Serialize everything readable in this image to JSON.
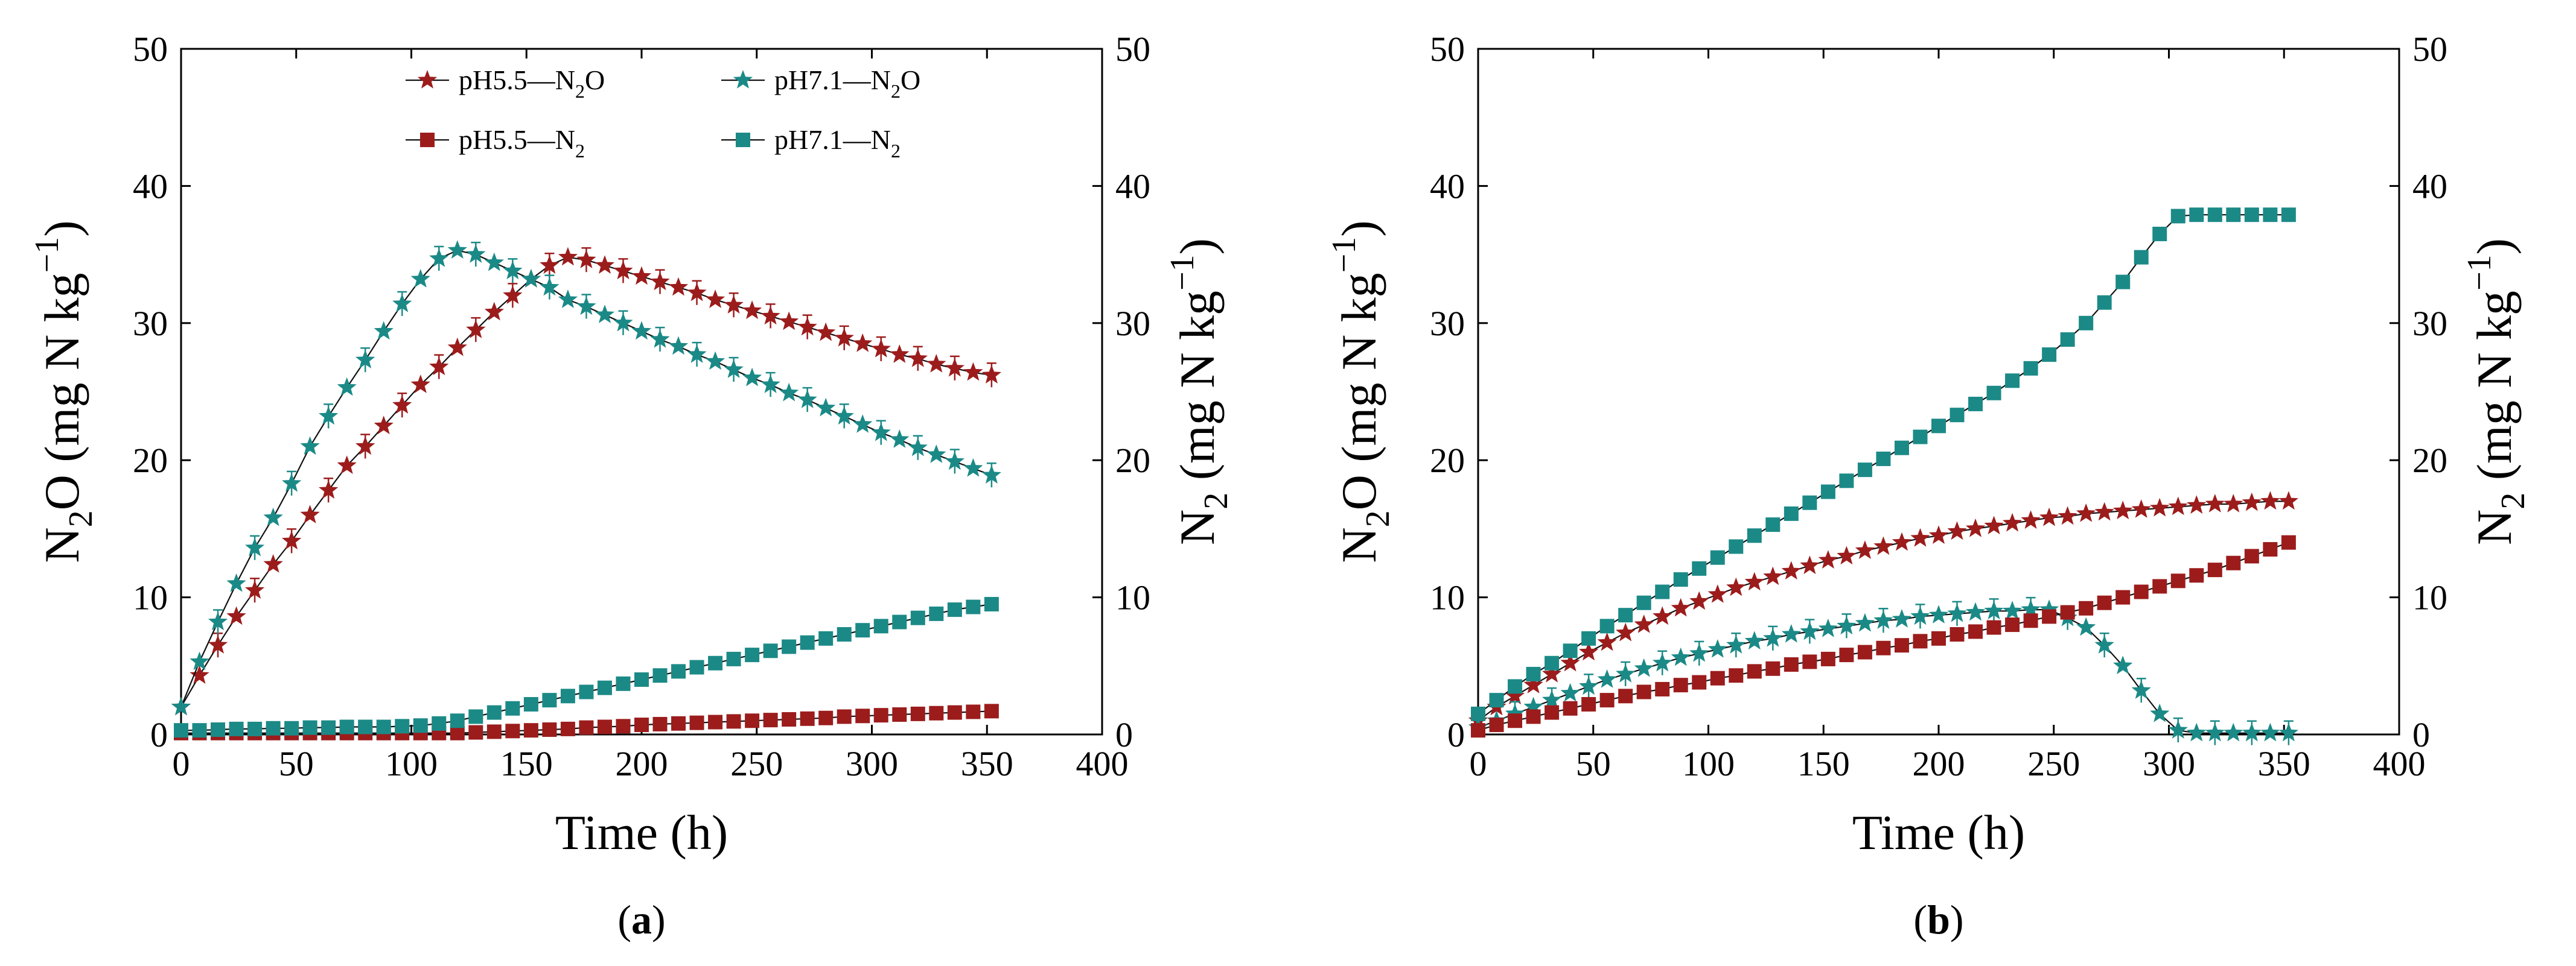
{
  "colors": {
    "red": "#9c1c1c",
    "teal": "#1b8a87",
    "axis": "#000000"
  },
  "axis_text": {
    "x_title": "Time (h)",
    "left_title": {
      "main": "N",
      "sub": "2",
      "rest": "O (mg N kg",
      "sup": "−1",
      "close": ")"
    },
    "right_title": {
      "main": "N",
      "sub": "2",
      "rest": " (mg N kg",
      "sup": "−1",
      "close": ")"
    }
  },
  "legend": [
    {
      "base": "pH5.5",
      "dash": "—",
      "species": "N",
      "sub": "2",
      "tail": "O",
      "color": "red",
      "marker": "star"
    },
    {
      "base": "pH7.1",
      "dash": "—",
      "species": "N",
      "sub": "2",
      "tail": "O",
      "color": "teal",
      "marker": "star"
    },
    {
      "base": "pH5.5",
      "dash": "—",
      "species": "N",
      "sub": "2",
      "tail": "",
      "color": "red",
      "marker": "square"
    },
    {
      "base": "pH7.1",
      "dash": "—",
      "species": "N",
      "sub": "2",
      "tail": "",
      "color": "teal",
      "marker": "square"
    }
  ],
  "chart_data": [
    {
      "panel": "(a)",
      "type": "line",
      "xlabel": "Time (h)",
      "ylabel": "N2O (mg N kg−1)",
      "y2label": "N2 (mg N kg−1)",
      "xlim": [
        0,
        400
      ],
      "ylim": [
        0,
        50
      ],
      "y2lim": [
        0,
        50
      ],
      "xticks": [
        0,
        50,
        100,
        150,
        200,
        250,
        300,
        350,
        400
      ],
      "yticks": [
        0,
        10,
        20,
        30,
        40,
        50
      ],
      "series": [
        {
          "name": "pH5.5—N2O",
          "color": "red",
          "marker": "star",
          "axis": "left",
          "error_bars": true,
          "x": [
            0,
            8,
            16,
            24,
            32,
            40,
            48,
            56,
            64,
            72,
            80,
            88,
            96,
            104,
            112,
            120,
            128,
            136,
            144,
            152,
            160,
            168,
            176,
            184,
            192,
            200,
            208,
            216,
            224,
            232,
            240,
            248,
            256,
            264,
            272,
            280,
            288,
            296,
            304,
            312,
            320,
            328,
            336,
            344,
            352
          ],
          "y": [
            2.0,
            4.3,
            6.5,
            8.6,
            10.5,
            12.4,
            14.1,
            16.0,
            17.8,
            19.6,
            21.0,
            22.5,
            24.0,
            25.5,
            26.8,
            28.2,
            29.5,
            30.8,
            32.0,
            33.2,
            34.2,
            34.8,
            34.6,
            34.2,
            33.8,
            33.4,
            33.0,
            32.6,
            32.2,
            31.7,
            31.3,
            30.9,
            30.5,
            30.1,
            29.7,
            29.3,
            28.9,
            28.5,
            28.1,
            27.7,
            27.4,
            27.0,
            26.7,
            26.4,
            26.2
          ]
        },
        {
          "name": "pH7.1—N2O",
          "color": "teal",
          "marker": "star",
          "axis": "left",
          "error_bars": true,
          "x": [
            0,
            8,
            16,
            24,
            32,
            40,
            48,
            56,
            64,
            72,
            80,
            88,
            96,
            104,
            112,
            120,
            128,
            136,
            144,
            152,
            160,
            168,
            176,
            184,
            192,
            200,
            208,
            216,
            224,
            232,
            240,
            248,
            256,
            264,
            272,
            280,
            288,
            296,
            304,
            312,
            320,
            328,
            336,
            344,
            352
          ],
          "y": [
            2.0,
            5.3,
            8.2,
            11.0,
            13.6,
            15.8,
            18.3,
            21.0,
            23.2,
            25.3,
            27.3,
            29.4,
            31.4,
            33.2,
            34.7,
            35.3,
            35.0,
            34.4,
            33.8,
            33.2,
            32.6,
            31.7,
            31.2,
            30.6,
            30.0,
            29.4,
            28.8,
            28.3,
            27.7,
            27.2,
            26.6,
            26.0,
            25.5,
            24.9,
            24.4,
            23.8,
            23.2,
            22.6,
            22.0,
            21.5,
            20.9,
            20.4,
            19.9,
            19.4,
            18.9
          ]
        },
        {
          "name": "pH5.5—N2",
          "color": "red",
          "marker": "square",
          "axis": "right",
          "error_bars": false,
          "x": [
            0,
            8,
            16,
            24,
            32,
            40,
            48,
            56,
            64,
            72,
            80,
            88,
            96,
            104,
            112,
            120,
            128,
            136,
            144,
            152,
            160,
            168,
            176,
            184,
            192,
            200,
            208,
            216,
            224,
            232,
            240,
            248,
            256,
            264,
            272,
            280,
            288,
            296,
            304,
            312,
            320,
            328,
            336,
            344,
            352
          ],
          "y": [
            0.1,
            0.1,
            0.1,
            0.1,
            0.1,
            0.1,
            0.1,
            0.1,
            0.1,
            0.1,
            0.1,
            0.1,
            0.1,
            0.1,
            0.1,
            0.1,
            0.15,
            0.2,
            0.25,
            0.3,
            0.35,
            0.4,
            0.5,
            0.55,
            0.6,
            0.7,
            0.75,
            0.8,
            0.85,
            0.9,
            0.95,
            1.0,
            1.05,
            1.1,
            1.15,
            1.2,
            1.3,
            1.35,
            1.4,
            1.45,
            1.5,
            1.55,
            1.6,
            1.65,
            1.7
          ]
        },
        {
          "name": "pH7.1—N2",
          "color": "teal",
          "marker": "square",
          "axis": "right",
          "error_bars": false,
          "x": [
            0,
            8,
            16,
            24,
            32,
            40,
            48,
            56,
            64,
            72,
            80,
            88,
            96,
            104,
            112,
            120,
            128,
            136,
            144,
            152,
            160,
            168,
            176,
            184,
            192,
            200,
            208,
            216,
            224,
            232,
            240,
            248,
            256,
            264,
            272,
            280,
            288,
            296,
            304,
            312,
            320,
            328,
            336,
            344,
            352
          ],
          "y": [
            0.3,
            0.3,
            0.35,
            0.4,
            0.4,
            0.45,
            0.45,
            0.5,
            0.5,
            0.55,
            0.55,
            0.55,
            0.6,
            0.65,
            0.8,
            1.0,
            1.3,
            1.6,
            1.9,
            2.2,
            2.5,
            2.8,
            3.1,
            3.4,
            3.7,
            4.0,
            4.3,
            4.6,
            4.9,
            5.2,
            5.5,
            5.8,
            6.1,
            6.4,
            6.7,
            7.0,
            7.3,
            7.6,
            7.9,
            8.2,
            8.5,
            8.8,
            9.1,
            9.3,
            9.5
          ]
        }
      ]
    },
    {
      "panel": "(b)",
      "type": "line",
      "xlabel": "Time (h)",
      "ylabel": "N2O (mg N kg−1)",
      "y2label": "N2 (mg N kg−1)",
      "xlim": [
        0,
        400
      ],
      "ylim": [
        0,
        50
      ],
      "y2lim": [
        0,
        50
      ],
      "xticks": [
        0,
        50,
        100,
        150,
        200,
        250,
        300,
        350,
        400
      ],
      "yticks": [
        0,
        10,
        20,
        30,
        40,
        50
      ],
      "series": [
        {
          "name": "pH5.5—N2O",
          "color": "red",
          "marker": "star",
          "axis": "left",
          "error_bars": false,
          "x": [
            0,
            8,
            16,
            24,
            32,
            40,
            48,
            56,
            64,
            72,
            80,
            88,
            96,
            104,
            112,
            120,
            128,
            136,
            144,
            152,
            160,
            168,
            176,
            184,
            192,
            200,
            208,
            216,
            224,
            232,
            240,
            248,
            256,
            264,
            272,
            280,
            288,
            296,
            304,
            312,
            320,
            328,
            336,
            344,
            352
          ],
          "y": [
            1.0,
            2.0,
            2.8,
            3.6,
            4.4,
            5.2,
            6.0,
            6.7,
            7.4,
            8.0,
            8.6,
            9.2,
            9.7,
            10.2,
            10.7,
            11.1,
            11.5,
            11.9,
            12.3,
            12.7,
            13.0,
            13.4,
            13.7,
            14.0,
            14.3,
            14.5,
            14.8,
            15.0,
            15.2,
            15.4,
            15.6,
            15.8,
            15.9,
            16.1,
            16.2,
            16.3,
            16.4,
            16.5,
            16.6,
            16.7,
            16.8,
            16.8,
            16.9,
            17.0,
            17.0
          ]
        },
        {
          "name": "pH7.1—N2O",
          "color": "teal",
          "marker": "star",
          "axis": "left",
          "error_bars": true,
          "x": [
            0,
            8,
            16,
            24,
            32,
            40,
            48,
            56,
            64,
            72,
            80,
            88,
            96,
            104,
            112,
            120,
            128,
            136,
            144,
            152,
            160,
            168,
            176,
            184,
            192,
            200,
            208,
            216,
            224,
            232,
            240,
            248,
            256,
            264,
            272,
            280,
            288,
            296,
            304,
            312,
            320,
            328,
            336,
            344,
            352
          ],
          "y": [
            0.5,
            1.0,
            1.5,
            2.0,
            2.5,
            3.0,
            3.5,
            4.0,
            4.4,
            4.8,
            5.2,
            5.6,
            5.9,
            6.2,
            6.5,
            6.8,
            7.0,
            7.3,
            7.5,
            7.7,
            7.9,
            8.1,
            8.3,
            8.4,
            8.6,
            8.7,
            8.8,
            8.9,
            9.0,
            9.0,
            9.1,
            9.1,
            8.5,
            7.8,
            6.5,
            5.0,
            3.2,
            1.5,
            0.3,
            0.1,
            0.1,
            0.1,
            0.1,
            0.1,
            0.1
          ]
        },
        {
          "name": "pH5.5—N2",
          "color": "red",
          "marker": "square",
          "axis": "right",
          "error_bars": false,
          "x": [
            0,
            8,
            16,
            24,
            32,
            40,
            48,
            56,
            64,
            72,
            80,
            88,
            96,
            104,
            112,
            120,
            128,
            136,
            144,
            152,
            160,
            168,
            176,
            184,
            192,
            200,
            208,
            216,
            224,
            232,
            240,
            248,
            256,
            264,
            272,
            280,
            288,
            296,
            304,
            312,
            320,
            328,
            336,
            344,
            352
          ],
          "y": [
            0.3,
            0.7,
            1.0,
            1.3,
            1.6,
            1.9,
            2.2,
            2.5,
            2.8,
            3.1,
            3.3,
            3.6,
            3.8,
            4.1,
            4.3,
            4.6,
            4.8,
            5.1,
            5.3,
            5.5,
            5.8,
            6.0,
            6.3,
            6.5,
            6.8,
            7.0,
            7.3,
            7.5,
            7.8,
            8.0,
            8.3,
            8.6,
            8.9,
            9.2,
            9.6,
            10.0,
            10.4,
            10.8,
            11.2,
            11.6,
            12.0,
            12.5,
            13.0,
            13.5,
            14.0
          ]
        },
        {
          "name": "pH7.1—N2",
          "color": "teal",
          "marker": "square",
          "axis": "right",
          "error_bars": false,
          "x": [
            0,
            8,
            16,
            24,
            32,
            40,
            48,
            56,
            64,
            72,
            80,
            88,
            96,
            104,
            112,
            120,
            128,
            136,
            144,
            152,
            160,
            168,
            176,
            184,
            192,
            200,
            208,
            216,
            224,
            232,
            240,
            248,
            256,
            264,
            272,
            280,
            288,
            296,
            304,
            312,
            320,
            328,
            336,
            344,
            352
          ],
          "y": [
            1.5,
            2.5,
            3.5,
            4.4,
            5.2,
            6.1,
            7.0,
            7.9,
            8.7,
            9.6,
            10.4,
            11.3,
            12.1,
            12.9,
            13.7,
            14.5,
            15.3,
            16.1,
            16.9,
            17.7,
            18.5,
            19.3,
            20.1,
            20.9,
            21.7,
            22.5,
            23.3,
            24.1,
            24.9,
            25.8,
            26.7,
            27.7,
            28.8,
            30.0,
            31.5,
            33.0,
            34.8,
            36.5,
            37.8,
            37.9,
            37.9,
            37.9,
            37.9,
            37.9,
            37.9
          ]
        }
      ]
    }
  ]
}
